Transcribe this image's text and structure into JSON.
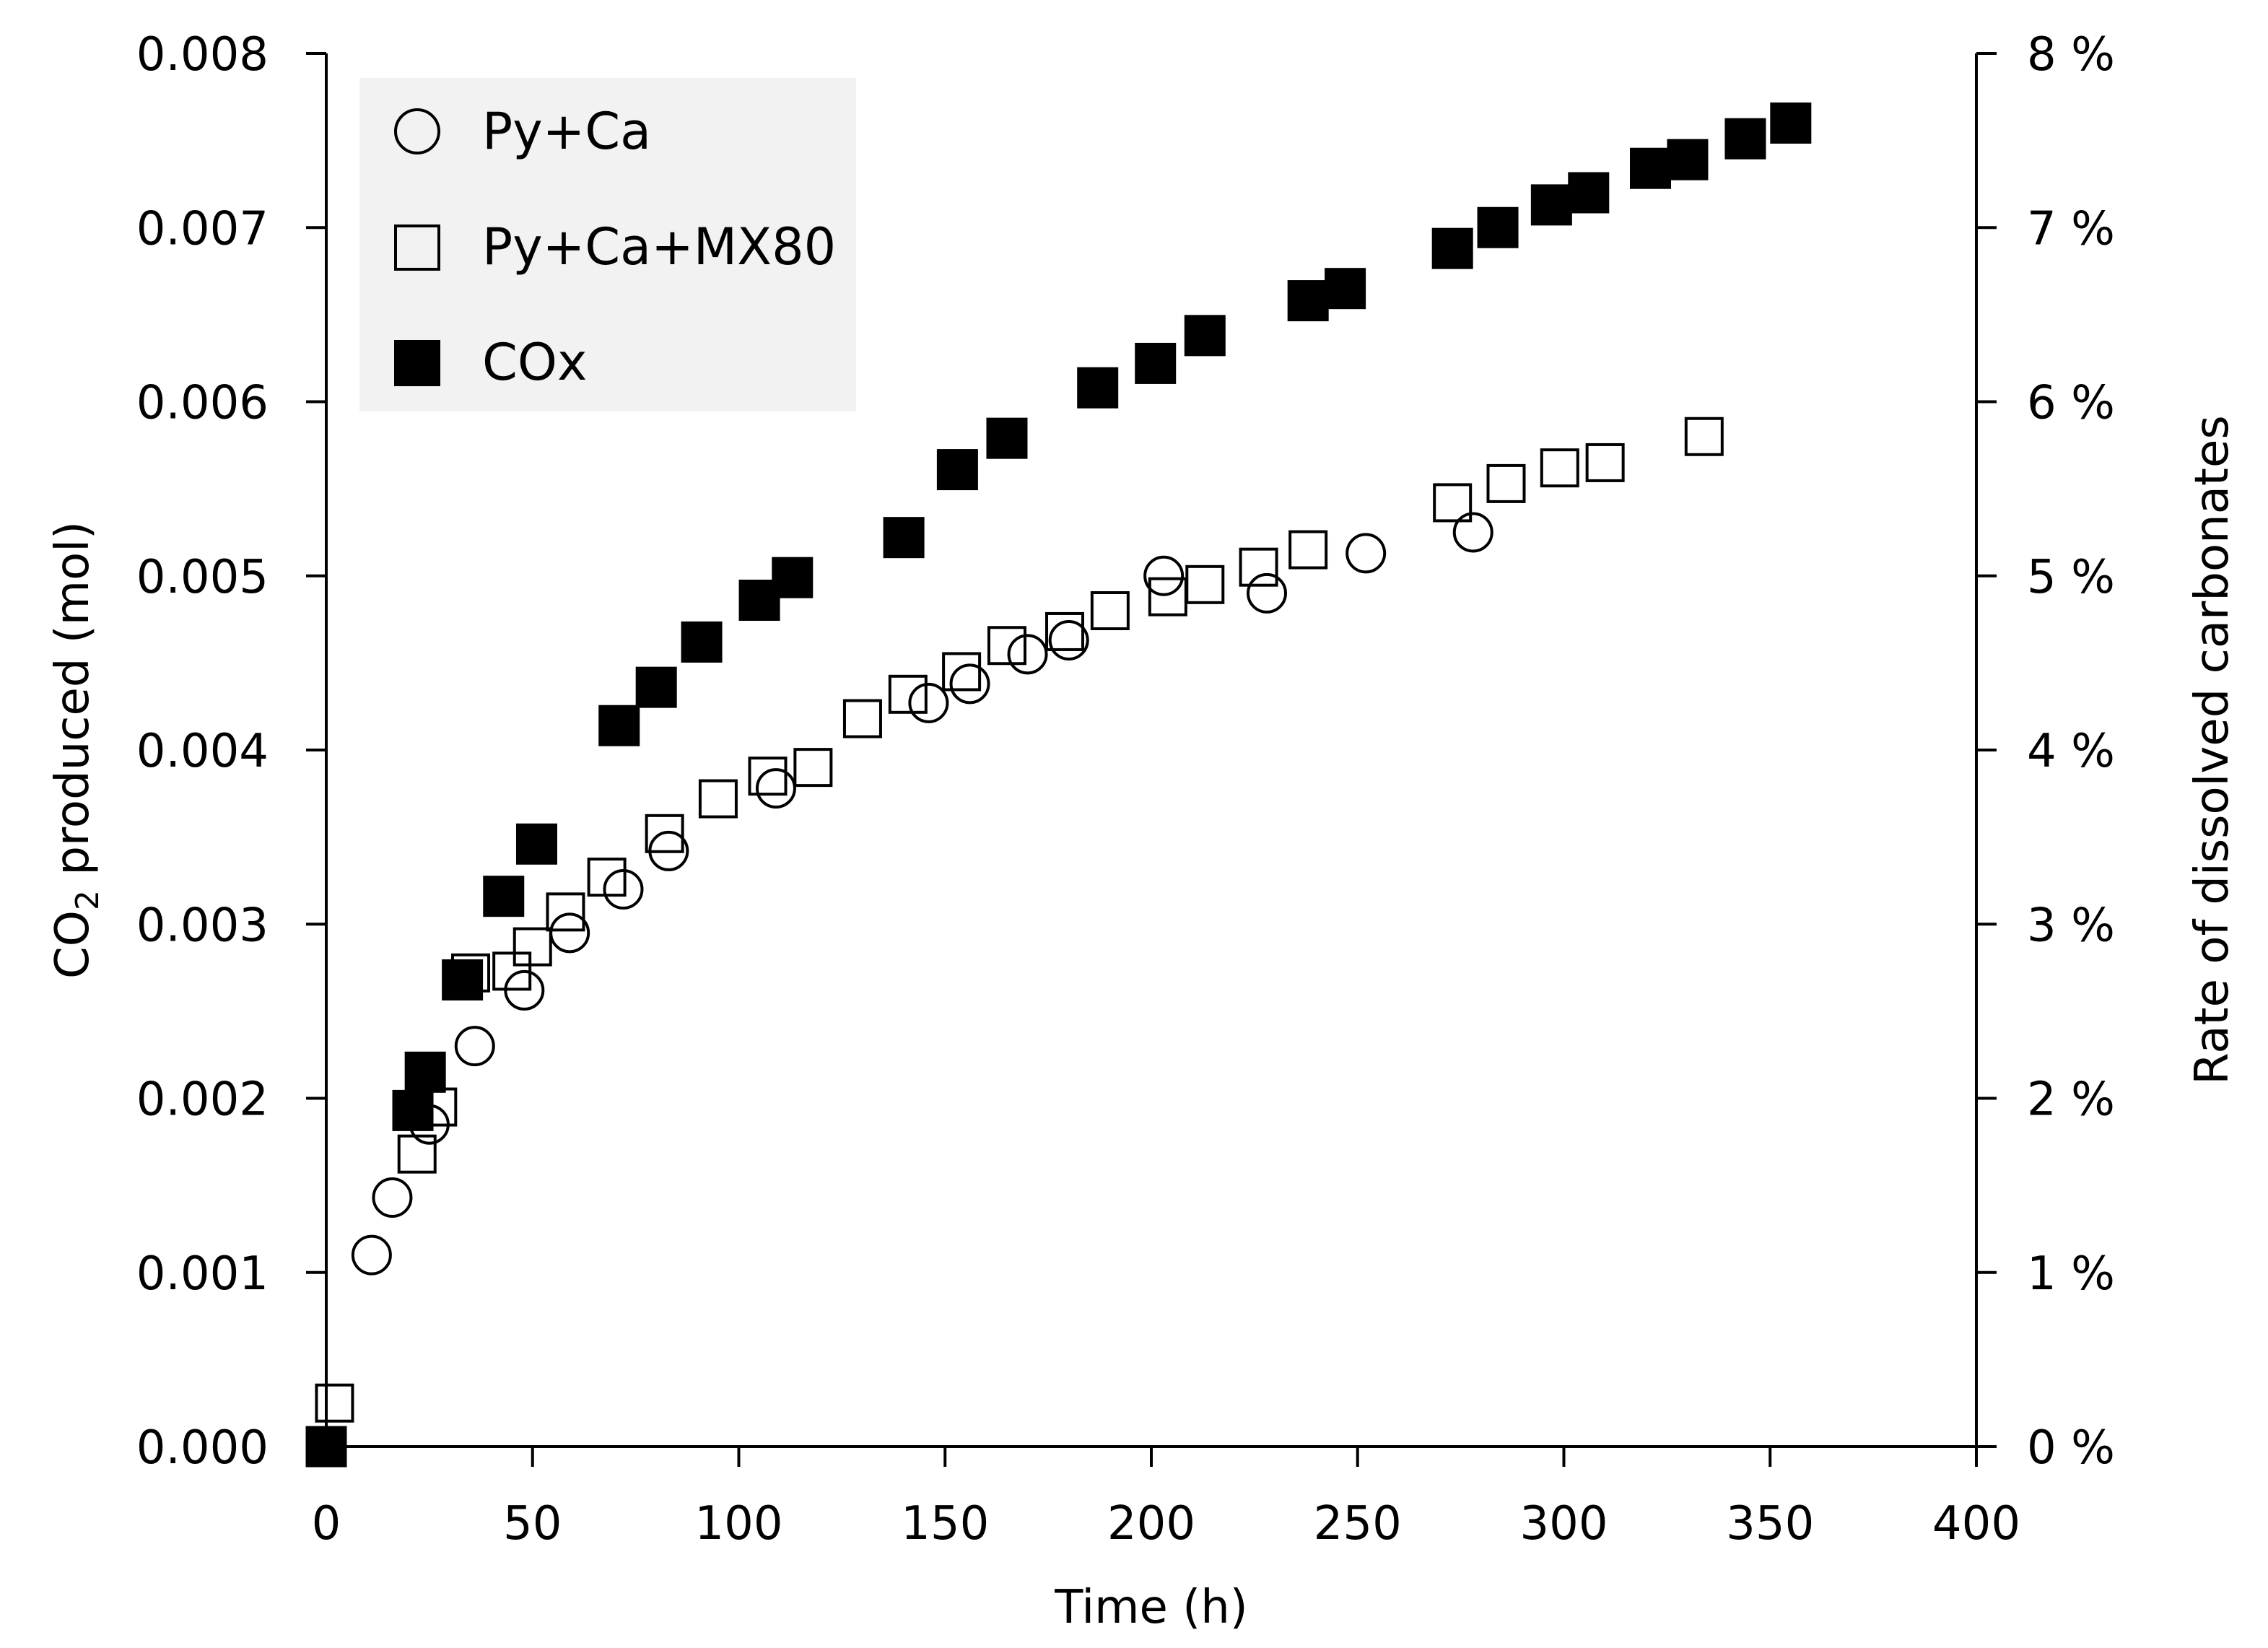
{
  "chart_data": {
    "type": "scatter",
    "title": "",
    "xlabel": "Time (h)",
    "ylabel": {
      "prefix": "CO",
      "subscript": "2",
      "suffix": " produced (mol)"
    },
    "y2label": "Rate of dissolved carbonates",
    "xlim": [
      0,
      400
    ],
    "ylim": [
      0,
      0.008
    ],
    "y2lim": [
      0,
      8
    ],
    "xticks": [
      0,
      50,
      100,
      150,
      200,
      250,
      300,
      350,
      400
    ],
    "xtick_labels": [
      "0",
      "50",
      "100",
      "150",
      "200",
      "250",
      "300",
      "350",
      "400"
    ],
    "yticks": [
      0,
      0.001,
      0.002,
      0.003,
      0.004,
      0.005,
      0.006,
      0.007,
      0.008
    ],
    "ytick_labels": [
      "0.000",
      "0.001",
      "0.002",
      "0.003",
      "0.004",
      "0.005",
      "0.006",
      "0.007",
      "0.008"
    ],
    "y2ticks": [
      0,
      1,
      2,
      3,
      4,
      5,
      6,
      7,
      8
    ],
    "y2tick_labels": [
      "0 %",
      "1 %",
      "2 %",
      "3 %",
      "4 %",
      "5 %",
      "6 %",
      "7 %",
      "8 %"
    ],
    "grid": false,
    "legend_position": "top-left",
    "series": [
      {
        "name": "Py+Ca",
        "marker": "circle-open",
        "points": [
          [
            0,
            0
          ],
          [
            11,
            0.0011
          ],
          [
            16,
            0.00143
          ],
          [
            25,
            0.00185
          ],
          [
            36,
            0.0023
          ],
          [
            48,
            0.00262
          ],
          [
            59,
            0.00295
          ],
          [
            72,
            0.0032
          ],
          [
            83,
            0.00342
          ],
          [
            109,
            0.00378
          ],
          [
            146,
            0.00427
          ],
          [
            156,
            0.00438
          ],
          [
            170,
            0.00455
          ],
          [
            180,
            0.00463
          ],
          [
            203,
            0.005
          ],
          [
            228,
            0.0049
          ],
          [
            252,
            0.00513
          ],
          [
            278,
            0.00525
          ]
        ]
      },
      {
        "name": "Py+Ca+MX80",
        "marker": "square-open",
        "points": [
          [
            0,
            0
          ],
          [
            2,
            0.00025
          ],
          [
            22,
            0.00168
          ],
          [
            27,
            0.00195
          ],
          [
            35,
            0.00272
          ],
          [
            45,
            0.00273
          ],
          [
            50,
            0.00287
          ],
          [
            58,
            0.00307
          ],
          [
            68,
            0.00327
          ],
          [
            82,
            0.00352
          ],
          [
            95,
            0.00372
          ],
          [
            107,
            0.00385
          ],
          [
            118,
            0.0039
          ],
          [
            130,
            0.00418
          ],
          [
            141,
            0.00432
          ],
          [
            154,
            0.00445
          ],
          [
            165,
            0.0046
          ],
          [
            179,
            0.00468
          ],
          [
            190,
            0.0048
          ],
          [
            204,
            0.00488
          ],
          [
            213,
            0.00495
          ],
          [
            226,
            0.00505
          ],
          [
            238,
            0.00515
          ],
          [
            273,
            0.00542
          ],
          [
            286,
            0.00553
          ],
          [
            299,
            0.00562
          ],
          [
            310,
            0.00565
          ],
          [
            334,
            0.0058
          ]
        ]
      },
      {
        "name": "COx",
        "marker": "square-filled",
        "points": [
          [
            0,
            0
          ],
          [
            21,
            0.00193
          ],
          [
            24,
            0.00215
          ],
          [
            33,
            0.00268
          ],
          [
            43,
            0.00316
          ],
          [
            51,
            0.00346
          ],
          [
            71,
            0.00414
          ],
          [
            80,
            0.00436
          ],
          [
            91,
            0.00462
          ],
          [
            105,
            0.00486
          ],
          [
            113,
            0.00499
          ],
          [
            140,
            0.00522
          ],
          [
            153,
            0.00561
          ],
          [
            165,
            0.00579
          ],
          [
            187,
            0.00608
          ],
          [
            201,
            0.00622
          ],
          [
            213,
            0.00638
          ],
          [
            238,
            0.00658
          ],
          [
            247,
            0.00665
          ],
          [
            273,
            0.00688
          ],
          [
            284,
            0.007
          ],
          [
            297,
            0.00713
          ],
          [
            306,
            0.0072
          ],
          [
            321,
            0.00734
          ],
          [
            330,
            0.00739
          ],
          [
            344,
            0.00751
          ],
          [
            355,
            0.0076
          ]
        ]
      }
    ]
  }
}
